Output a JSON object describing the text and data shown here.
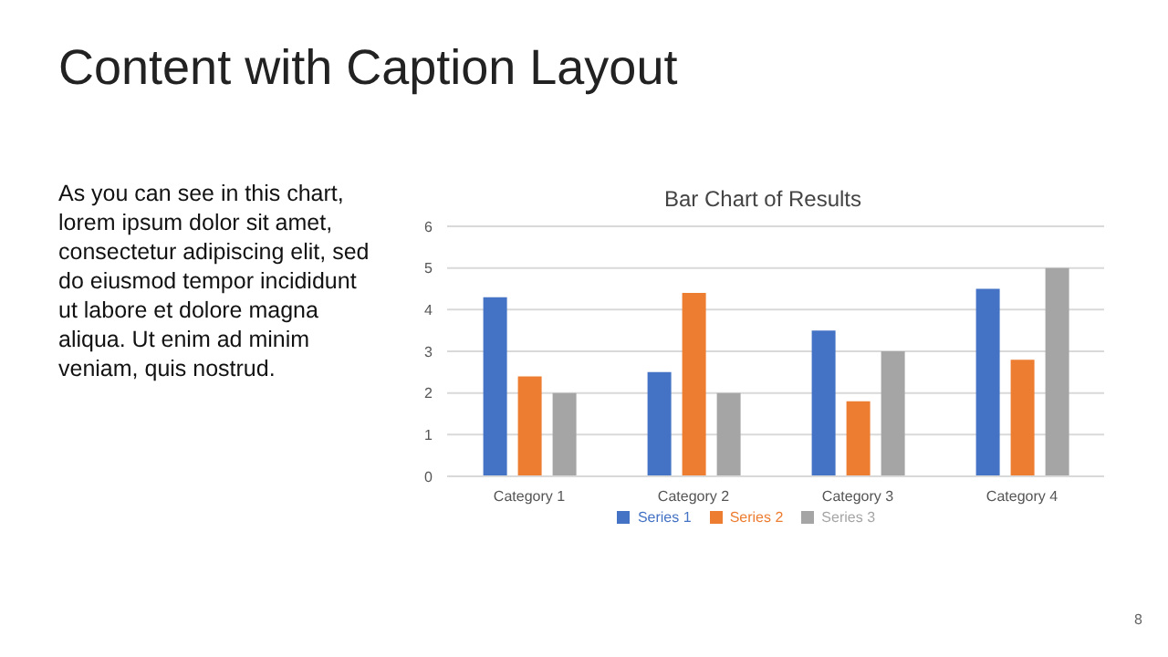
{
  "chart_data": {
    "type": "bar",
    "title": "Content with Caption Layout",
    "subtitle": "Bar Chart of Results",
    "annotations": [
      "As you can see in this chart, lorem ipsum dolor sit amet, consectetur adipiscing elit, sed do eiusmod tempor incididunt ut labore et dolore magna aliqua. Ut enim ad minim veniam, quis nostrud.",
      "8"
    ],
    "categories": [
      "Category 1",
      "Category 2",
      "Category 3",
      "Category 4"
    ],
    "series": [
      {
        "name": "Series 1",
        "color": "#4472c4",
        "values": [
          4.3,
          2.5,
          3.5,
          4.5
        ]
      },
      {
        "name": "Series 2",
        "color": "#ed7d31",
        "values": [
          2.4,
          4.4,
          1.8,
          2.8
        ]
      },
      {
        "name": "Series 3",
        "color": "#a5a5a5",
        "values": [
          2,
          2,
          3,
          5
        ]
      }
    ],
    "ylim": [
      0,
      6
    ],
    "yticks": [
      0,
      1,
      2,
      3,
      4,
      5,
      6
    ],
    "grid": "y",
    "legend": "bottom"
  }
}
